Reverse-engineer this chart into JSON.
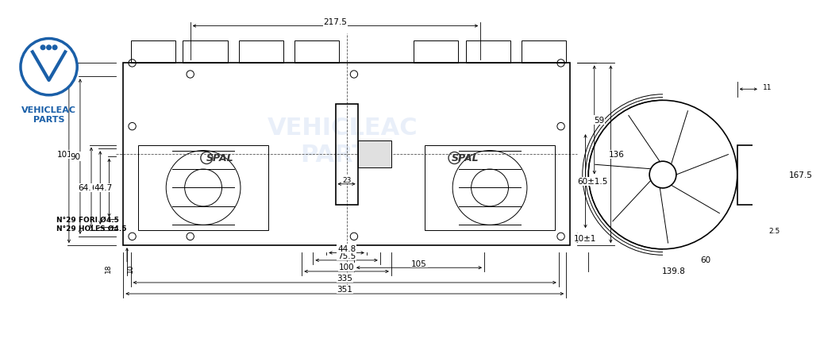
{
  "bg_color": "#ffffff",
  "line_color": "#000000",
  "dim_color": "#000000",
  "logo_text1": "VEHICLEAC",
  "logo_text2": "PARTS",
  "watermark": "VEHICLEAC\nPARTS",
  "note_line1": "N°29 FORI Ø4.5",
  "note_line2": "N°29 HOLES Ø4.5",
  "spal_label": "SPAL",
  "dims_top": [
    "351",
    "335",
    "100",
    "75.5",
    "44.8",
    "105"
  ],
  "dims_left": [
    "101",
    "90",
    "64.5",
    "61",
    "44.7",
    "18",
    "10"
  ],
  "dims_right": [
    "136",
    "59",
    "60±1.5",
    "10±1"
  ],
  "dims_side": [
    "139.8",
    "60",
    "2.5",
    "167.5",
    "11"
  ],
  "dim_23": "23",
  "dim_217": "217.5"
}
